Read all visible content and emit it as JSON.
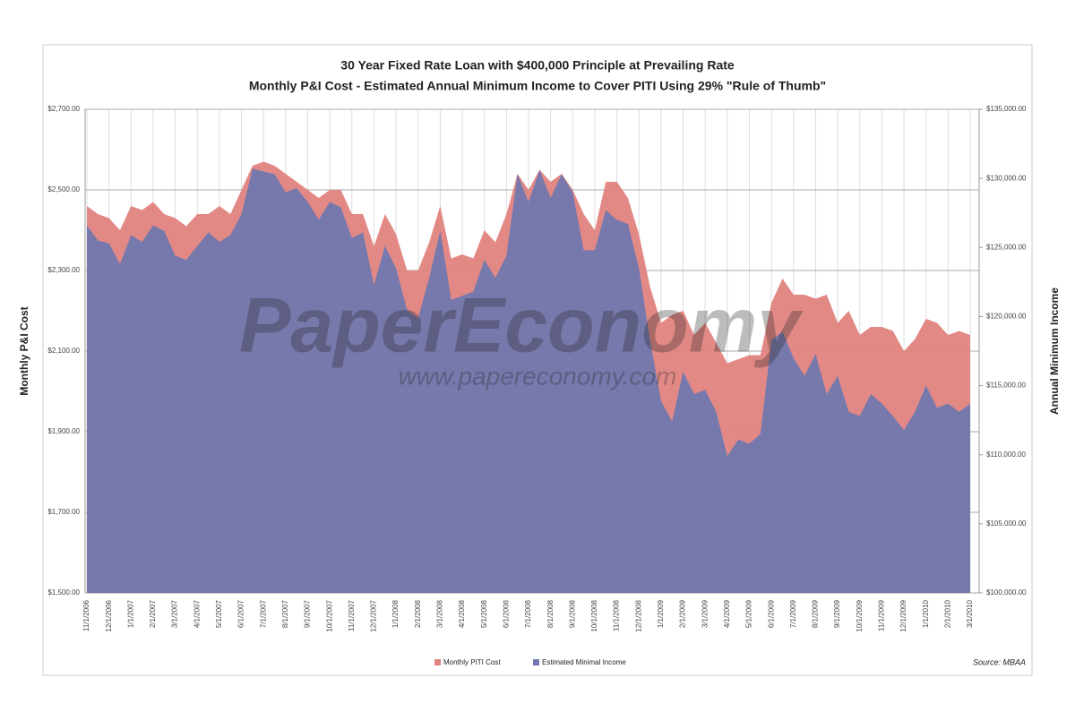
{
  "chart_data": {
    "type": "area",
    "title": "30 Year Fixed Rate Loan with $400,000 Principle at Prevailing Rate",
    "subtitle": "Monthly P&I Cost - Estimated Annual Minimum Income to Cover PITI Using 29% \"Rule of Thumb\"",
    "y_label": "Monthly P&I Cost",
    "y2_label": "Annual Minimum Income",
    "source": "Source: MBAA",
    "watermark": "PaperEconomy",
    "watermark_url": "www.papereconomy.com",
    "grid": true,
    "legend": "bottom",
    "categories": [
      "11/1/2006",
      null,
      "12/1/2006",
      null,
      "1/1/2007",
      null,
      "2/1/2007",
      null,
      "3/1/2007",
      null,
      "4/1/2007",
      null,
      "5/1/2007",
      null,
      "6/1/2007",
      null,
      "7/1/2007",
      null,
      "8/1/2007",
      null,
      "9/1/2007",
      null,
      "10/1/2007",
      null,
      "11/1/2007",
      null,
      "12/1/2007",
      null,
      "1/1/2008",
      null,
      "2/1/2008",
      null,
      "3/1/2008",
      null,
      "4/1/2008",
      null,
      "5/1/2008",
      null,
      "6/1/2008",
      null,
      "7/1/2008",
      null,
      "8/1/2008",
      null,
      "9/1/2008",
      null,
      "10/1/2008",
      null,
      "11/1/2008",
      null,
      "12/1/2008",
      null,
      "1/1/2009",
      null,
      "2/1/2009",
      null,
      "3/1/2009",
      null,
      "4/1/2009",
      null,
      "5/1/2009",
      null,
      "6/1/2009",
      null,
      "7/1/2009",
      null,
      "8/1/2009",
      null,
      "9/1/2009",
      null,
      "10/1/2009",
      null,
      "11/1/2009",
      null,
      "12/1/2009",
      null,
      "1/1/2010",
      null,
      "2/1/2010",
      null,
      "3/1/2010"
    ],
    "series": [
      {
        "name": "Monthly PITI Cost",
        "color": "#e0837f",
        "values": [
          2460,
          2440,
          2430,
          2400,
          2460,
          2450,
          2470,
          2440,
          2430,
          2410,
          2440,
          2440,
          2460,
          2440,
          2500,
          2560,
          2570,
          2560,
          2540,
          2520,
          2500,
          2480,
          2500,
          2500,
          2440,
          2440,
          2360,
          2440,
          2390,
          2300,
          2300,
          2370,
          2460,
          2330,
          2340,
          2330,
          2400,
          2370,
          2440,
          2540,
          2500,
          2550,
          2520,
          2540,
          2500,
          2440,
          2400,
          2520,
          2520,
          2480,
          2390,
          2260,
          2170,
          2190,
          2200,
          2140,
          2170,
          2120,
          2070,
          2080,
          2090,
          2090,
          2220,
          2280,
          2240,
          2240,
          2230,
          2240,
          2170,
          2200,
          2140,
          2160,
          2160,
          2150,
          2100,
          2130,
          2180,
          2170,
          2140,
          2150,
          2140
        ]
      },
      {
        "name": "Estimated Minimal Income",
        "color": "#7479ad",
        "axis": "y2",
        "values": [
          126600,
          125500,
          125300,
          123800,
          125900,
          125400,
          126600,
          126200,
          124400,
          124100,
          125100,
          126100,
          125400,
          125900,
          127400,
          130700,
          130500,
          130300,
          129000,
          129300,
          128300,
          127000,
          128300,
          127900,
          125700,
          126100,
          122300,
          125100,
          123500,
          120500,
          119900,
          122800,
          126200,
          121200,
          121500,
          121800,
          124100,
          122800,
          124400,
          130300,
          128300,
          130600,
          128600,
          130300,
          129000,
          124800,
          124800,
          127700,
          127000,
          126700,
          123500,
          118300,
          113900,
          112400,
          116000,
          114400,
          114700,
          113100,
          109900,
          111100,
          110800,
          111500,
          118300,
          118900,
          117000,
          115700,
          117300,
          114400,
          115700,
          113100,
          112800,
          114400,
          113700,
          112800,
          111800,
          113100,
          115000,
          113400,
          113700,
          113100,
          113700
        ]
      }
    ],
    "ylim": [
      1500,
      2700
    ],
    "yticks": [
      {
        "value": 1500,
        "label": "$1,500.00"
      },
      {
        "value": 1700,
        "label": "$1,700.00"
      },
      {
        "value": 1900,
        "label": "$1,900.00"
      },
      {
        "value": 2100,
        "label": "$2,100.00"
      },
      {
        "value": 2300,
        "label": "$2,300.00"
      },
      {
        "value": 2500,
        "label": "$2,500.00"
      },
      {
        "value": 2700,
        "label": "$2,700.00"
      }
    ],
    "y2lim": [
      100000,
      135000
    ],
    "y2ticks": [
      {
        "value": 100000,
        "label": "$100,000.00"
      },
      {
        "value": 105000,
        "label": "$105,000.00"
      },
      {
        "value": 110000,
        "label": "$110,000.00"
      },
      {
        "value": 115000,
        "label": "$115,000.00"
      },
      {
        "value": 120000,
        "label": "$120,000.00"
      },
      {
        "value": 125000,
        "label": "$125,000.00"
      },
      {
        "value": 130000,
        "label": "$130,000.00"
      },
      {
        "value": 135000,
        "label": "$135,000.00"
      }
    ]
  }
}
